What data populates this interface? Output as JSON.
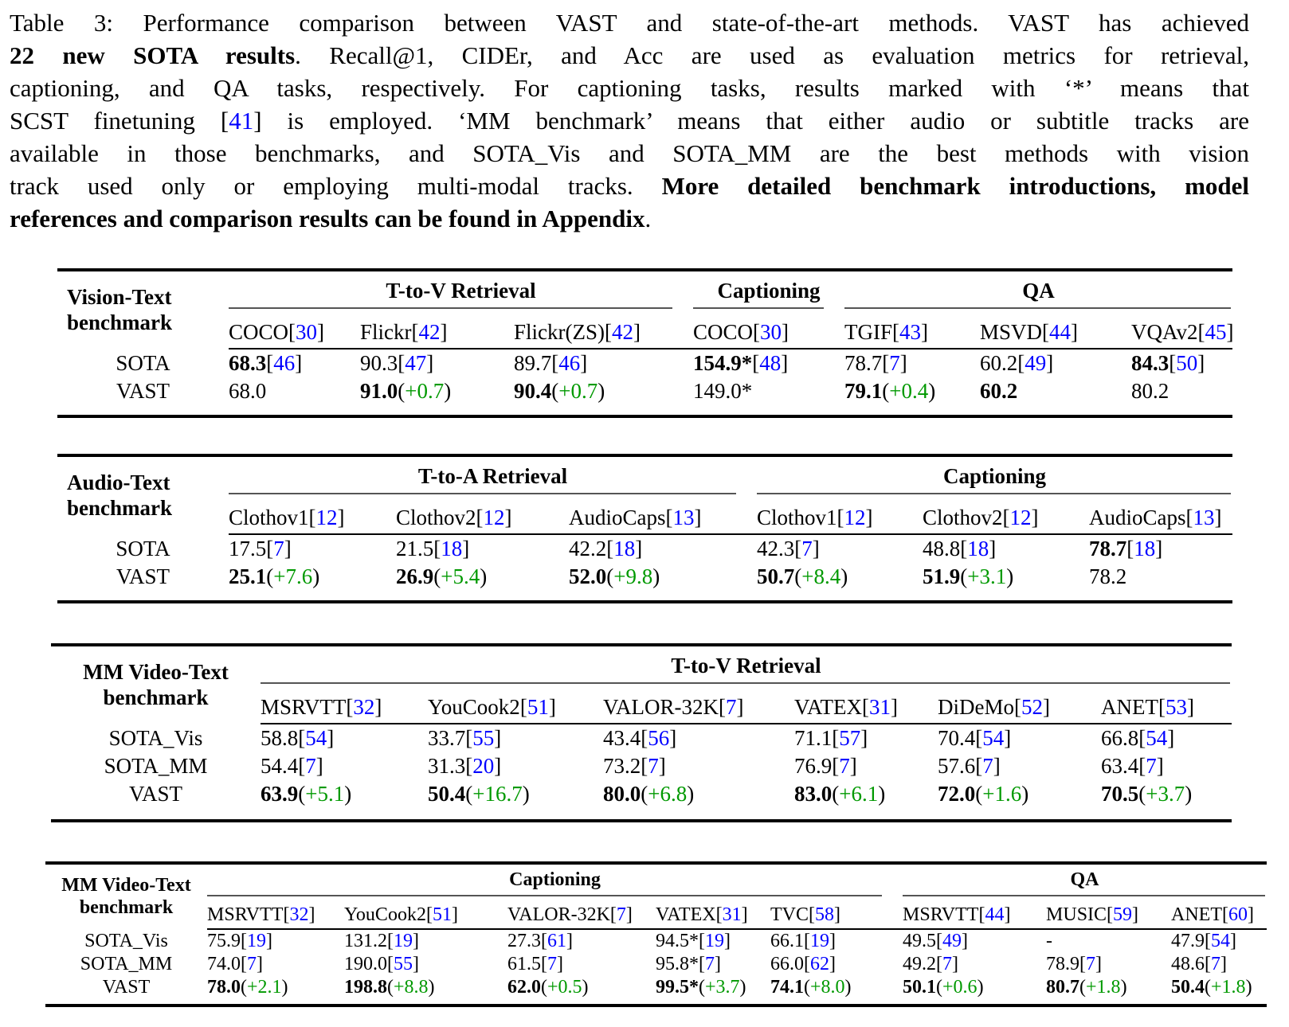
{
  "colors": {
    "citation_blue": "#0000FF",
    "improvement_green": "#009900"
  },
  "caption": {
    "lines": [
      [
        "Table 3: Performance comparison between VAST and state-of-the-art methods. VAST has achieved"
      ],
      [
        "b:22 new SOTA results",
        ". Recall@1, CIDEr, and Acc are used as evaluation metrics for retrieval,"
      ],
      [
        "captioning, and QA tasks, respectively. For captioning tasks, results marked with ‘*’ means that"
      ],
      [
        "SCST finetuning ",
        "[41]",
        " is employed. ‘MM benchmark’ means that either audio or subtitle tracks are"
      ],
      [
        "available in those benchmarks, and SOTA_Vis and SOTA_MM are the best methods with vision"
      ],
      [
        "track used only or employing multi-modal tracks. ",
        "b:More detailed benchmark introductions, model"
      ],
      [
        "b:references and comparison results can be found in Appendix",
        "."
      ]
    ]
  },
  "tables": [
    {
      "id": "vision-text",
      "label_lines": [
        "Vision-Text",
        "benchmark"
      ],
      "groups": [
        {
          "title": "T-to-V Retrieval",
          "span": 3
        },
        {
          "title": "Captioning",
          "span": 1
        },
        {
          "title": "QA",
          "span": 3
        }
      ],
      "columns": [
        [
          "COCO",
          "[30]"
        ],
        [
          "Flickr",
          "[42]"
        ],
        [
          "Flickr(ZS)",
          "[42]"
        ],
        [
          "COCO",
          "[30]"
        ],
        [
          "TGIF",
          "[43]"
        ],
        [
          "MSVD",
          "[44]"
        ],
        [
          "VQAv2",
          "[45]"
        ]
      ],
      "rows": [
        {
          "name": "SOTA",
          "cells": [
            [
              "b:68.3",
              "[46]"
            ],
            [
              "90.3",
              "[47]"
            ],
            [
              "89.7",
              "[46]"
            ],
            [
              "b:154.9*",
              "[48]"
            ],
            [
              "78.7",
              "[7]"
            ],
            [
              "60.2",
              "[49]"
            ],
            [
              "b:84.3",
              "[50]"
            ]
          ]
        },
        {
          "name": "VAST",
          "cells": [
            [
              "68.0"
            ],
            [
              "b:91.0",
              "(+0.7)"
            ],
            [
              "b:90.4",
              "(+0.7)"
            ],
            [
              "149.0*"
            ],
            [
              "b:79.1",
              "(+0.4)"
            ],
            [
              "b:60.2"
            ],
            [
              "80.2"
            ]
          ]
        }
      ]
    },
    {
      "id": "audio-text",
      "label_lines": [
        "Audio-Text",
        "benchmark"
      ],
      "groups": [
        {
          "title": "T-to-A Retrieval",
          "span": 3
        },
        {
          "title": "Captioning",
          "span": 3
        }
      ],
      "columns": [
        [
          "Clothov1",
          "[12]"
        ],
        [
          "Clothov2",
          "[12]"
        ],
        [
          "AudioCaps",
          "[13]"
        ],
        [
          "Clothov1",
          "[12]"
        ],
        [
          "Clothov2",
          "[12]"
        ],
        [
          "AudioCaps",
          "[13]"
        ]
      ],
      "rows": [
        {
          "name": "SOTA",
          "cells": [
            [
              "17.5",
              "[7]"
            ],
            [
              "21.5",
              "[18]"
            ],
            [
              "42.2",
              "[18]"
            ],
            [
              "42.3",
              "[7]"
            ],
            [
              "48.8",
              "[18]"
            ],
            [
              "b:78.7",
              "[18]"
            ]
          ]
        },
        {
          "name": "VAST",
          "cells": [
            [
              "b:25.1",
              "(+7.6)"
            ],
            [
              "b:26.9",
              "(+5.4)"
            ],
            [
              "b:52.0",
              "(+9.8)"
            ],
            [
              "b:50.7",
              "(+8.4)"
            ],
            [
              "b:51.9",
              "(+3.1)"
            ],
            [
              "78.2"
            ]
          ]
        }
      ]
    },
    {
      "id": "mm-video-text-retrieval",
      "label_lines": [
        "MM Video-Text",
        "benchmark"
      ],
      "groups": [
        {
          "title": "T-to-V Retrieval",
          "span": 6
        }
      ],
      "columns": [
        [
          "MSRVTT",
          "[32]"
        ],
        [
          "YouCook2",
          "[51]"
        ],
        [
          "VALOR-32K",
          "[7]"
        ],
        [
          "VATEX",
          "[31]"
        ],
        [
          "DiDeMo",
          "[52]"
        ],
        [
          "ANET",
          "[53]"
        ]
      ],
      "rows": [
        {
          "name": "SOTA_Vis",
          "cells": [
            [
              "58.8",
              "[54]"
            ],
            [
              "33.7",
              "[55]"
            ],
            [
              "43.4",
              "[56]"
            ],
            [
              "71.1",
              "[57]"
            ],
            [
              "70.4",
              "[54]"
            ],
            [
              "66.8",
              "[54]"
            ]
          ]
        },
        {
          "name": "SOTA_MM",
          "cells": [
            [
              "54.4",
              "[7]"
            ],
            [
              "31.3",
              "[20]"
            ],
            [
              "73.2",
              "[7]"
            ],
            [
              "76.9",
              "[7]"
            ],
            [
              "57.6",
              "[7]"
            ],
            [
              "63.4",
              "[7]"
            ]
          ]
        },
        {
          "name": "VAST",
          "cells": [
            [
              "b:63.9",
              "(+5.1)"
            ],
            [
              "b:50.4",
              "(+16.7)"
            ],
            [
              "b:80.0",
              "(+6.8)"
            ],
            [
              "b:83.0",
              "(+6.1)"
            ],
            [
              "b:72.0",
              "(+1.6)"
            ],
            [
              "b:70.5",
              "(+3.7)"
            ]
          ]
        }
      ]
    },
    {
      "id": "mm-video-text-captioning-qa",
      "label_lines": [
        "MM Video-Text",
        "benchmark"
      ],
      "groups": [
        {
          "title": "Captioning",
          "span": 5
        },
        {
          "title": "QA",
          "span": 3
        }
      ],
      "columns": [
        [
          "MSRVTT",
          "[32]"
        ],
        [
          "YouCook2",
          "[51]"
        ],
        [
          "VALOR-32K",
          "[7]"
        ],
        [
          "VATEX",
          "[31]"
        ],
        [
          "TVC",
          "[58]"
        ],
        [
          "MSRVTT",
          "[44]"
        ],
        [
          "MUSIC",
          "[59]"
        ],
        [
          "ANET",
          "[60]"
        ]
      ],
      "rows": [
        {
          "name": "SOTA_Vis",
          "cells": [
            [
              "75.9",
              "[19]"
            ],
            [
              "131.2",
              "[19]"
            ],
            [
              "27.3",
              "[61]"
            ],
            [
              "94.5*",
              "[19]"
            ],
            [
              "66.1",
              "[19]"
            ],
            [
              "49.5",
              "[49]"
            ],
            [
              "-"
            ],
            [
              "47.9",
              "[54]"
            ]
          ]
        },
        {
          "name": "SOTA_MM",
          "cells": [
            [
              "74.0",
              "[7]"
            ],
            [
              "190.0",
              "[55]"
            ],
            [
              "61.5",
              "[7]"
            ],
            [
              "95.8*",
              "[7]"
            ],
            [
              "66.0",
              "[62]"
            ],
            [
              "49.2",
              "[7]"
            ],
            [
              "78.9",
              "[7]"
            ],
            [
              "48.6",
              "[7]"
            ]
          ]
        },
        {
          "name": "VAST",
          "cells": [
            [
              "b:78.0",
              "(+2.1)"
            ],
            [
              "b:198.8",
              "(+8.8)"
            ],
            [
              "b:62.0",
              "(+0.5)"
            ],
            [
              "b:99.5*",
              "(+3.7)"
            ],
            [
              "b:74.1",
              "(+8.0)"
            ],
            [
              "b:50.1",
              "(+0.6)"
            ],
            [
              "b:80.7",
              "(+1.8)"
            ],
            [
              "b:50.4",
              "(+1.8)"
            ]
          ]
        }
      ]
    }
  ]
}
